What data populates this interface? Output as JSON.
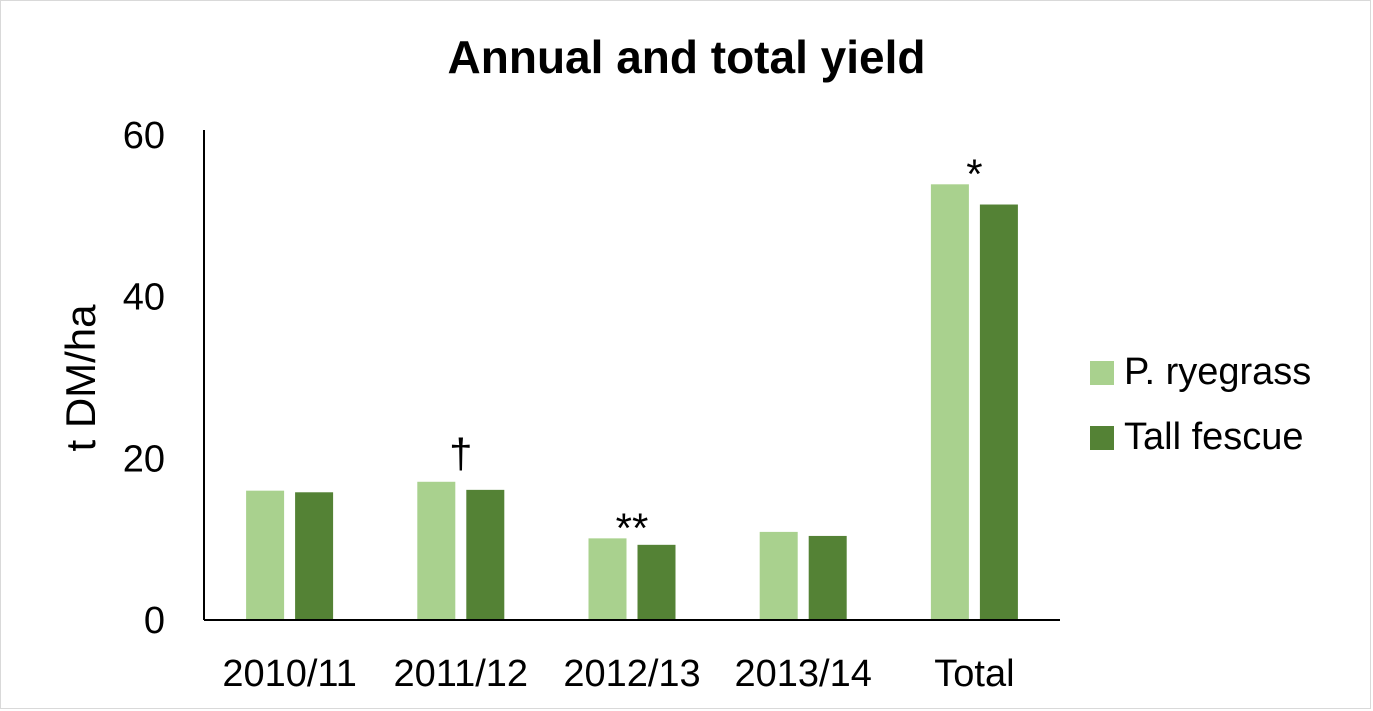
{
  "chart_data": {
    "type": "bar",
    "title": "Annual and total yield",
    "ylabel": "t DM/ha",
    "xlabel": "",
    "ylim": [
      0,
      60
    ],
    "yticks": [
      0,
      20,
      40,
      60
    ],
    "categories": [
      "2010/11",
      "2011/12",
      "2012/13",
      "2013/14",
      "Total"
    ],
    "series": [
      {
        "name": "P. ryegrass",
        "color": "#a9d18e",
        "values": [
          16.0,
          17.1,
          10.1,
          10.9,
          53.9
        ]
      },
      {
        "name": "Tall fescue",
        "color": "#548235",
        "values": [
          15.8,
          16.1,
          9.3,
          10.4,
          51.4
        ]
      }
    ],
    "annotations": [
      "",
      "†",
      "**",
      "",
      "*"
    ],
    "legend_position": "right",
    "grid": false
  }
}
